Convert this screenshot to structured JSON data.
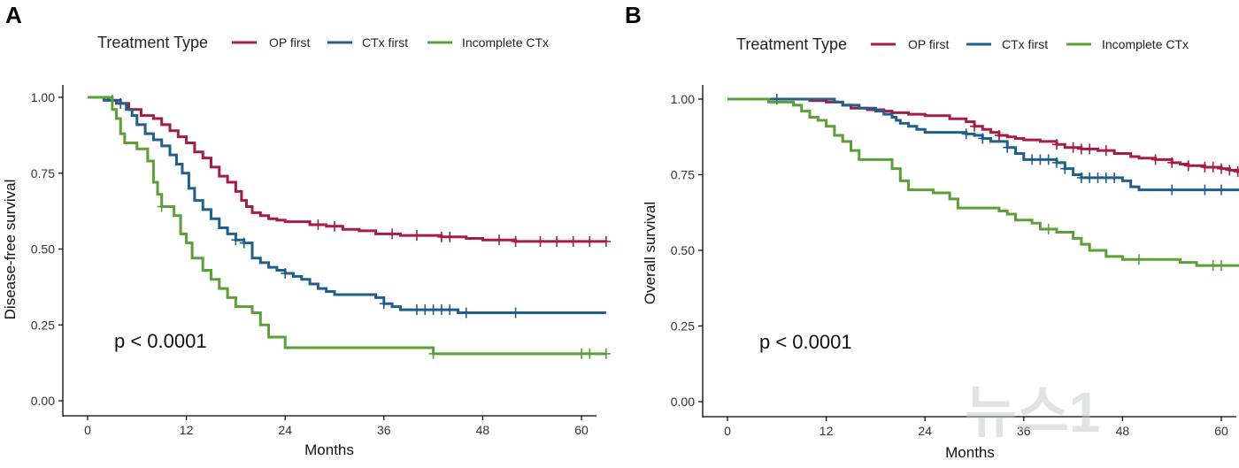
{
  "chart_data": [
    {
      "panel": "A",
      "type": "line",
      "step": true,
      "title": "",
      "legend": {
        "title": "Treatment Type",
        "position": "top"
      },
      "xlabel": "Months",
      "ylabel": "Disease-free survival",
      "xlim": [
        0,
        63
      ],
      "ylim": [
        0,
        1
      ],
      "xticks": [
        0,
        12,
        24,
        36,
        48,
        60
      ],
      "yticks": [
        0.0,
        0.25,
        0.5,
        0.75,
        1.0
      ],
      "ytick_labels": [
        "0.00",
        "0.25",
        "0.50",
        "0.75",
        "1.00"
      ],
      "annotation": "p < 0.0001",
      "series": [
        {
          "name": "OP first",
          "color": "#a51c45",
          "steps": [
            [
              0,
              1.0
            ],
            [
              2.5,
              0.99
            ],
            [
              3.5,
              0.98
            ],
            [
              5,
              0.96
            ],
            [
              6.5,
              0.94
            ],
            [
              8,
              0.93
            ],
            [
              9,
              0.91
            ],
            [
              10,
              0.89
            ],
            [
              11,
              0.87
            ],
            [
              12,
              0.85
            ],
            [
              13,
              0.82
            ],
            [
              14,
              0.8
            ],
            [
              15,
              0.77
            ],
            [
              16,
              0.74
            ],
            [
              17,
              0.72
            ],
            [
              18,
              0.69
            ],
            [
              18.7,
              0.66
            ],
            [
              19.3,
              0.64
            ],
            [
              20,
              0.62
            ],
            [
              21,
              0.61
            ],
            [
              22,
              0.6
            ],
            [
              23,
              0.595
            ],
            [
              24,
              0.59
            ],
            [
              27,
              0.58
            ],
            [
              29,
              0.575
            ],
            [
              31,
              0.565
            ],
            [
              33,
              0.56
            ],
            [
              35,
              0.55
            ],
            [
              38,
              0.545
            ],
            [
              40,
              0.545
            ],
            [
              43,
              0.54
            ],
            [
              46,
              0.535
            ],
            [
              48,
              0.53
            ],
            [
              52,
              0.525
            ],
            [
              63,
              0.525
            ]
          ],
          "censor_times": [
            28,
            30,
            37,
            40,
            43,
            44,
            50,
            52,
            55,
            57,
            59,
            61,
            63
          ]
        },
        {
          "name": "CTx first",
          "color": "#1f5f8b",
          "steps": [
            [
              0,
              1.0
            ],
            [
              2,
              0.99
            ],
            [
              4,
              0.98
            ],
            [
              4.7,
              0.96
            ],
            [
              5.4,
              0.94
            ],
            [
              6,
              0.91
            ],
            [
              7,
              0.88
            ],
            [
              8,
              0.86
            ],
            [
              9,
              0.84
            ],
            [
              10,
              0.81
            ],
            [
              10.8,
              0.78
            ],
            [
              11.5,
              0.75
            ],
            [
              12.3,
              0.7
            ],
            [
              13,
              0.66
            ],
            [
              14,
              0.63
            ],
            [
              15,
              0.6
            ],
            [
              16,
              0.57
            ],
            [
              17,
              0.55
            ],
            [
              18,
              0.53
            ],
            [
              19,
              0.52
            ],
            [
              20,
              0.47
            ],
            [
              21,
              0.455
            ],
            [
              22,
              0.44
            ],
            [
              23,
              0.43
            ],
            [
              24,
              0.42
            ],
            [
              25,
              0.41
            ],
            [
              26,
              0.4
            ],
            [
              27,
              0.385
            ],
            [
              28,
              0.37
            ],
            [
              29,
              0.36
            ],
            [
              30,
              0.35
            ],
            [
              35,
              0.34
            ],
            [
              36,
              0.32
            ],
            [
              37,
              0.31
            ],
            [
              38,
              0.3
            ],
            [
              45,
              0.29
            ],
            [
              63,
              0.29
            ]
          ],
          "censor_times": [
            3,
            4,
            18,
            19,
            24,
            36,
            40,
            41,
            42,
            43,
            44,
            46,
            52
          ]
        },
        {
          "name": "Incomplete CTx",
          "color": "#5aa036",
          "steps": [
            [
              0,
              1.0
            ],
            [
              3,
              0.96
            ],
            [
              3.5,
              0.93
            ],
            [
              4,
              0.88
            ],
            [
              4.5,
              0.85
            ],
            [
              6,
              0.83
            ],
            [
              7.3,
              0.79
            ],
            [
              8,
              0.72
            ],
            [
              8.5,
              0.68
            ],
            [
              9,
              0.64
            ],
            [
              10.5,
              0.61
            ],
            [
              11.3,
              0.55
            ],
            [
              12,
              0.52
            ],
            [
              12.7,
              0.47
            ],
            [
              14,
              0.43
            ],
            [
              15,
              0.4
            ],
            [
              16,
              0.37
            ],
            [
              17,
              0.34
            ],
            [
              18,
              0.31
            ],
            [
              20,
              0.29
            ],
            [
              21,
              0.25
            ],
            [
              22,
              0.21
            ],
            [
              24,
              0.175
            ],
            [
              42,
              0.155
            ],
            [
              63,
              0.155
            ]
          ],
          "censor_times": [
            9,
            42,
            60,
            61,
            63
          ]
        }
      ]
    },
    {
      "panel": "B",
      "type": "line",
      "step": true,
      "title": "",
      "legend": {
        "title": "Treatment Type",
        "position": "top"
      },
      "xlabel": "Months",
      "ylabel": "Overall survival",
      "xlim": [
        0,
        63
      ],
      "ylim": [
        0,
        1
      ],
      "xticks": [
        0,
        12,
        24,
        36,
        48,
        60
      ],
      "yticks": [
        0.0,
        0.25,
        0.5,
        0.75,
        1.0
      ],
      "ytick_labels": [
        "0.00",
        "0.25",
        "0.50",
        "0.75",
        "1.00"
      ],
      "annotation": "p < 0.0001",
      "series": [
        {
          "name": "OP first",
          "color": "#a51c45",
          "steps": [
            [
              0,
              1.0
            ],
            [
              10,
              0.995
            ],
            [
              12,
              0.99
            ],
            [
              14,
              0.98
            ],
            [
              15,
              0.97
            ],
            [
              17,
              0.965
            ],
            [
              19,
              0.96
            ],
            [
              20,
              0.955
            ],
            [
              22,
              0.95
            ],
            [
              24,
              0.945
            ],
            [
              27,
              0.935
            ],
            [
              29,
              0.925
            ],
            [
              30,
              0.91
            ],
            [
              31,
              0.9
            ],
            [
              32,
              0.89
            ],
            [
              33,
              0.88
            ],
            [
              34,
              0.875
            ],
            [
              35,
              0.87
            ],
            [
              36,
              0.865
            ],
            [
              38,
              0.86
            ],
            [
              40,
              0.85
            ],
            [
              41,
              0.84
            ],
            [
              43,
              0.835
            ],
            [
              45,
              0.83
            ],
            [
              47,
              0.82
            ],
            [
              49,
              0.81
            ],
            [
              50,
              0.805
            ],
            [
              52,
              0.8
            ],
            [
              54,
              0.79
            ],
            [
              55,
              0.785
            ],
            [
              56,
              0.78
            ],
            [
              58,
              0.775
            ],
            [
              60,
              0.77
            ],
            [
              61,
              0.765
            ],
            [
              62,
              0.76
            ],
            [
              63,
              0.755
            ]
          ],
          "censor_times": [
            30,
            33,
            40,
            42,
            43,
            44,
            46,
            52,
            54,
            56,
            58,
            59,
            60,
            61,
            62,
            63
          ]
        },
        {
          "name": "CTx first",
          "color": "#1f5f8b",
          "steps": [
            [
              0,
              1.0
            ],
            [
              13,
              0.99
            ],
            [
              14,
              0.98
            ],
            [
              16,
              0.97
            ],
            [
              18,
              0.96
            ],
            [
              19,
              0.95
            ],
            [
              20,
              0.94
            ],
            [
              20.5,
              0.93
            ],
            [
              21,
              0.92
            ],
            [
              22,
              0.91
            ],
            [
              23,
              0.9
            ],
            [
              24,
              0.89
            ],
            [
              29,
              0.885
            ],
            [
              30,
              0.88
            ],
            [
              31,
              0.87
            ],
            [
              32,
              0.86
            ],
            [
              34,
              0.84
            ],
            [
              35,
              0.82
            ],
            [
              36,
              0.8
            ],
            [
              39,
              0.8
            ],
            [
              40,
              0.79
            ],
            [
              41,
              0.77
            ],
            [
              42,
              0.75
            ],
            [
              43,
              0.74
            ],
            [
              47,
              0.74
            ],
            [
              48,
              0.73
            ],
            [
              49,
              0.71
            ],
            [
              50,
              0.7
            ],
            [
              63,
              0.7
            ]
          ],
          "censor_times": [
            6,
            29,
            31,
            34,
            37,
            38,
            39,
            40,
            41,
            43,
            44,
            45,
            46,
            47,
            54,
            58,
            60,
            63
          ]
        },
        {
          "name": "Incomplete CTx",
          "color": "#5aa036",
          "steps": [
            [
              0,
              1.0
            ],
            [
              5,
              0.99
            ],
            [
              8,
              0.98
            ],
            [
              9,
              0.96
            ],
            [
              10,
              0.94
            ],
            [
              11,
              0.93
            ],
            [
              12,
              0.91
            ],
            [
              13,
              0.88
            ],
            [
              14,
              0.86
            ],
            [
              15,
              0.83
            ],
            [
              16,
              0.8
            ],
            [
              18,
              0.8
            ],
            [
              20,
              0.77
            ],
            [
              21,
              0.73
            ],
            [
              22,
              0.7
            ],
            [
              24,
              0.7
            ],
            [
              25,
              0.69
            ],
            [
              27,
              0.67
            ],
            [
              28,
              0.64
            ],
            [
              32,
              0.64
            ],
            [
              33,
              0.63
            ],
            [
              34,
              0.62
            ],
            [
              35,
              0.6
            ],
            [
              37,
              0.59
            ],
            [
              38,
              0.57
            ],
            [
              40,
              0.56
            ],
            [
              42,
              0.54
            ],
            [
              43,
              0.52
            ],
            [
              44,
              0.5
            ],
            [
              46,
              0.48
            ],
            [
              48,
              0.47
            ],
            [
              55,
              0.46
            ],
            [
              57,
              0.45
            ],
            [
              63,
              0.45
            ],
            [
              63,
              0.42
            ]
          ],
          "censor_times": [
            39,
            50,
            59,
            60
          ]
        }
      ]
    }
  ],
  "watermark": {
    "text": "뉴스1"
  }
}
